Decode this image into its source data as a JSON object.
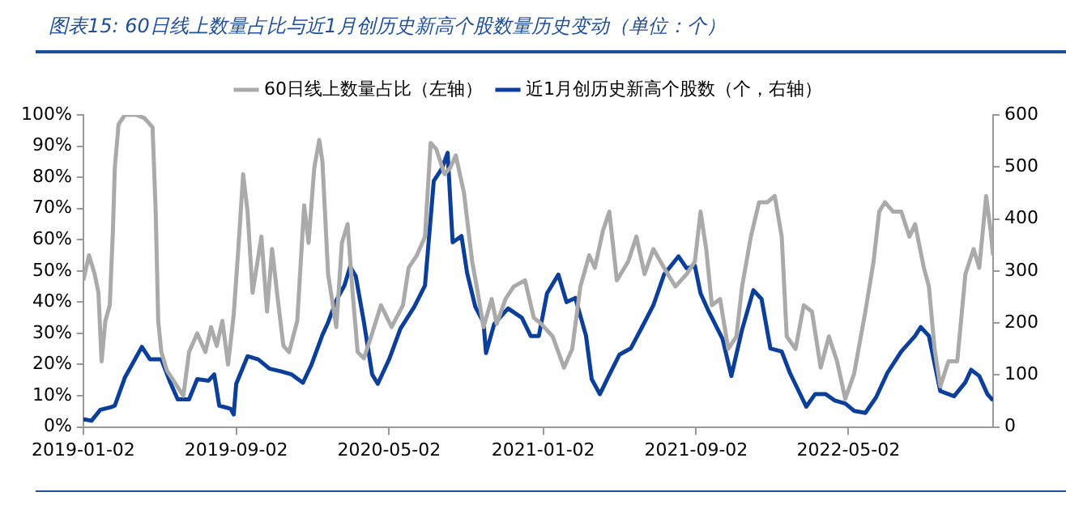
{
  "chart_data": {
    "type": "line",
    "title": "图表15: 60日线上数量占比与近1月创历史新高个股数量历史变动（单位：个）",
    "legend": "top",
    "marker": "none",
    "line_style": "solid",
    "xlim": [
      "2019-01-02",
      "2022-12-18"
    ],
    "xticks": [
      "2019-01-02",
      "2019-09-02",
      "2020-05-02",
      "2021-01-02",
      "2021-09-02",
      "2022-05-02"
    ],
    "ylim": [
      0,
      100
    ],
    "yticks": [
      {
        "value": 0,
        "label": "0%"
      },
      {
        "value": 10,
        "label": "10%"
      },
      {
        "value": 20,
        "label": "20%"
      },
      {
        "value": 30,
        "label": "30%"
      },
      {
        "value": 40,
        "label": "40%"
      },
      {
        "value": 50,
        "label": "50%"
      },
      {
        "value": 60,
        "label": "60%"
      },
      {
        "value": 70,
        "label": "70%"
      },
      {
        "value": 80,
        "label": "80%"
      },
      {
        "value": 90,
        "label": "90%"
      },
      {
        "value": 100,
        "label": "100%"
      }
    ],
    "y2lim": [
      0,
      600
    ],
    "y2ticks": [
      0,
      100,
      200,
      300,
      400,
      500,
      600
    ],
    "series": [
      {
        "name": "60日线上数量占比（左轴）",
        "color": "#aaaaaa",
        "x": [
          "2019-01-02",
          "2019-01-11",
          "2019-01-20",
          "2019-01-26",
          "2019-01-31",
          "2019-02-06",
          "2019-02-13",
          "2019-02-18",
          "2019-02-21",
          "2019-02-27",
          "2019-03-09",
          "2019-03-27",
          "2019-04-09",
          "2019-04-22",
          "2019-04-27",
          "2019-05-01",
          "2019-05-06",
          "2019-05-15",
          "2019-05-28",
          "2019-06-10",
          "2019-06-19",
          "2019-07-02",
          "2019-07-15",
          "2019-07-24",
          "2019-08-02",
          "2019-08-11",
          "2019-08-20",
          "2019-08-29",
          "2019-09-06",
          "2019-09-13",
          "2019-09-20",
          "2019-09-28",
          "2019-10-12",
          "2019-10-21",
          "2019-10-29",
          "2019-11-07",
          "2019-11-16",
          "2019-11-25",
          "2019-12-08",
          "2019-12-19",
          "2019-12-26",
          "2020-01-04",
          "2020-01-12",
          "2020-01-17",
          "2020-01-26",
          "2020-02-08",
          "2020-02-17",
          "2020-02-26",
          "2020-03-05",
          "2020-03-13",
          "2020-03-23",
          "2020-04-05",
          "2020-04-19",
          "2020-05-06",
          "2020-05-24",
          "2020-06-02",
          "2020-06-15",
          "2020-06-28",
          "2020-07-07",
          "2020-07-16",
          "2020-07-29",
          "2020-08-07",
          "2020-08-16",
          "2020-08-29",
          "2020-09-11",
          "2020-09-20",
          "2020-09-29",
          "2020-10-12",
          "2020-10-20",
          "2020-11-03",
          "2020-11-16",
          "2020-12-04",
          "2020-12-18",
          "2020-12-30",
          "2021-01-17",
          "2021-02-04",
          "2021-02-17",
          "2021-03-02",
          "2021-03-16",
          "2021-03-25",
          "2021-04-07",
          "2021-04-17",
          "2021-04-29",
          "2021-05-17",
          "2021-05-30",
          "2021-06-12",
          "2021-06-26",
          "2021-07-13",
          "2021-07-31",
          "2021-08-18",
          "2021-08-31",
          "2021-09-09",
          "2021-09-18",
          "2021-09-27",
          "2021-10-10",
          "2021-10-23",
          "2021-11-05",
          "2021-11-14",
          "2021-11-28",
          "2021-12-11",
          "2021-12-24",
          "2022-01-05",
          "2022-01-16",
          "2022-01-24",
          "2022-02-07",
          "2022-02-20",
          "2022-03-05",
          "2022-03-19",
          "2022-04-01",
          "2022-04-14",
          "2022-04-27",
          "2022-05-11",
          "2022-05-29",
          "2022-06-11",
          "2022-06-20",
          "2022-06-29",
          "2022-07-12",
          "2022-07-25",
          "2022-08-07",
          "2022-08-16",
          "2022-08-30",
          "2022-09-07",
          "2022-09-16",
          "2022-09-25",
          "2022-10-08",
          "2022-10-22",
          "2022-11-04",
          "2022-11-17",
          "2022-11-26",
          "2022-12-07",
          "2022-12-14",
          "2022-12-18"
        ],
        "values": [
          47,
          55,
          49,
          43,
          21,
          34,
          39,
          63,
          83,
          97,
          100,
          100,
          99,
          96,
          69,
          34,
          24,
          18,
          14,
          10,
          24,
          30,
          24,
          32,
          26,
          34,
          20,
          36,
          59,
          81,
          69,
          43,
          61,
          37,
          57,
          41,
          26,
          24,
          34,
          71,
          59,
          83,
          92,
          85,
          49,
          32,
          59,
          65,
          43,
          24,
          22,
          30,
          39,
          32,
          39,
          51,
          55,
          61,
          91,
          89,
          81,
          83,
          87,
          75,
          53,
          43,
          32,
          41,
          33,
          41,
          45,
          47,
          35,
          33,
          29,
          19,
          25,
          45,
          55,
          51,
          63,
          69,
          47,
          53,
          61,
          49,
          57,
          51,
          45,
          49,
          53,
          69,
          57,
          39,
          41,
          25,
          29,
          45,
          61,
          72,
          72,
          74,
          61,
          29,
          25,
          39,
          37,
          19,
          29,
          21,
          9,
          17,
          37,
          53,
          69,
          72,
          69,
          69,
          61,
          65,
          51,
          45,
          25,
          13,
          21,
          21,
          49,
          57,
          51,
          74,
          63,
          55
        ]
      },
      {
        "name": "近1月创历史新高个股数（个，右轴）",
        "color": "#0b3f99",
        "axis": "y2",
        "x": [
          "2019-01-02",
          "2019-01-15",
          "2019-01-29",
          "2019-02-15",
          "2019-02-21",
          "2019-03-09",
          "2019-04-05",
          "2019-04-18",
          "2019-05-06",
          "2019-05-19",
          "2019-06-01",
          "2019-06-19",
          "2019-07-02",
          "2019-07-20",
          "2019-07-29",
          "2019-08-06",
          "2019-08-24",
          "2019-08-29",
          "2019-09-02",
          "2019-09-20",
          "2019-10-07",
          "2019-10-25",
          "2019-11-12",
          "2019-11-29",
          "2019-12-17",
          "2019-12-30",
          "2020-01-17",
          "2020-01-26",
          "2020-02-08",
          "2020-02-21",
          "2020-03-01",
          "2020-03-10",
          "2020-03-23",
          "2020-04-05",
          "2020-04-14",
          "2020-05-02",
          "2020-05-20",
          "2020-06-11",
          "2020-06-28",
          "2020-07-12",
          "2020-07-25",
          "2020-08-03",
          "2020-08-11",
          "2020-08-25",
          "2020-09-03",
          "2020-09-16",
          "2020-09-29",
          "2020-10-03",
          "2020-10-16",
          "2020-11-07",
          "2020-11-29",
          "2020-12-13",
          "2020-12-26",
          "2021-01-08",
          "2021-01-26",
          "2021-02-08",
          "2021-02-22",
          "2021-03-11",
          "2021-03-20",
          "2021-04-02",
          "2021-04-16",
          "2021-05-03",
          "2021-05-21",
          "2021-06-08",
          "2021-06-26",
          "2021-07-13",
          "2021-08-05",
          "2021-08-18",
          "2021-08-31",
          "2021-09-09",
          "2021-09-22",
          "2021-10-14",
          "2021-10-28",
          "2021-11-14",
          "2021-12-02",
          "2021-12-15",
          "2021-12-29",
          "2022-01-16",
          "2022-01-29",
          "2022-02-24",
          "2022-03-10",
          "2022-03-27",
          "2022-04-10",
          "2022-04-27",
          "2022-05-11",
          "2022-05-29",
          "2022-06-15",
          "2022-07-03",
          "2022-07-25",
          "2022-08-16",
          "2022-08-25",
          "2022-09-07",
          "2022-09-25",
          "2022-10-17",
          "2022-11-04",
          "2022-11-13",
          "2022-11-26",
          "2022-12-09",
          "2022-12-18"
        ],
        "values": [
          15,
          12,
          33,
          38,
          41,
          95,
          154,
          130,
          130,
          89,
          53,
          53,
          92,
          89,
          101,
          41,
          35,
          24,
          83,
          136,
          130,
          112,
          107,
          101,
          85,
          118,
          177,
          201,
          243,
          272,
          308,
          290,
          201,
          101,
          83,
          130,
          189,
          231,
          272,
          473,
          497,
          527,
          355,
          367,
          296,
          231,
          201,
          142,
          198,
          228,
          210,
          175,
          175,
          257,
          293,
          240,
          248,
          175,
          92,
          63,
          98,
          139,
          151,
          192,
          234,
          293,
          328,
          305,
          310,
          257,
          222,
          169,
          98,
          187,
          263,
          246,
          151,
          145,
          104,
          39,
          63,
          63,
          51,
          45,
          31,
          27,
          57,
          104,
          145,
          175,
          192,
          175,
          69,
          59,
          86,
          110,
          98,
          63,
          51
        ]
      }
    ]
  }
}
